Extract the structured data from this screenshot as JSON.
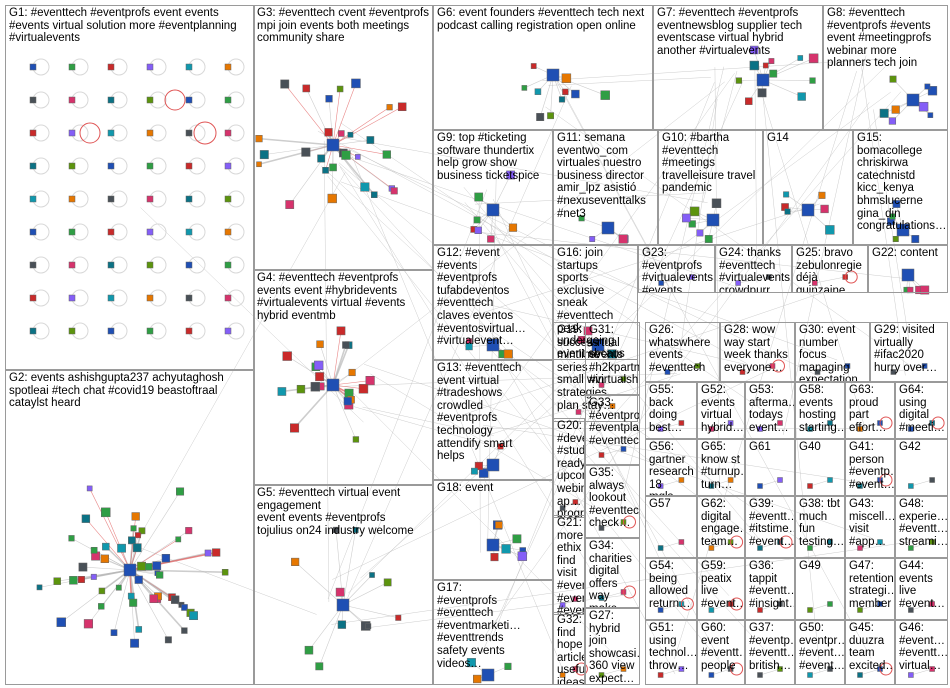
{
  "groups": [
    {
      "id": "G1",
      "label": "G1: #eventtech #eventprofs event events\n#events virtual solution more #eventplanning\n#virtualevents"
    },
    {
      "id": "G2",
      "label": "G2: events ashishgupta237 achyutaghosh\nspotleai #tech chat #covid19 beastoftraal\ncataylst heard"
    },
    {
      "id": "G3",
      "label": "G3: #eventtech cvent #eventprofs\nmpi join events both meetings\ncommunity share"
    },
    {
      "id": "G4",
      "label": "G4: #eventtech #eventprofs\nevents event #hybridevents\n#virtualevents virtual #events\nhybrid eventmb"
    },
    {
      "id": "G5",
      "label": "G5: #eventtech virtual event engagement\nevent events #eventprofs\ntojulius on24 industry welcome"
    },
    {
      "id": "G6",
      "label": "G6: event founders #eventtech tech next\npodcast calling registration open online"
    },
    {
      "id": "G7",
      "label": "G7: #eventtech #eventprofs\neventnewsblog supplier tech\neventscase virtual hybrid\nanother #virtualevents"
    },
    {
      "id": "G8",
      "label": "G8: #eventtech\n#eventprofs #events\nevent #meetingprofs\nwebinar more\nplanners tech join"
    },
    {
      "id": "G9",
      "label": "G9: top #ticketing\nsoftware thundertix\nhelp grow show\nbusiness ticketspice"
    },
    {
      "id": "G11",
      "label": "G11: semana\neventwo_com\nvirtuales nuestro\nbusiness director\namir_lpz asistió\n#nexuseventtalks\n#net3"
    },
    {
      "id": "G10",
      "label": "G10: #bartha\n#eventtech\n#meetings\ntravelleisure travel\npandemic"
    },
    {
      "id": "G14",
      "label": "G14"
    },
    {
      "id": "G15",
      "label": "G15:\nbomacollege\nchriskirwa\ncatechnistd\nkicc_kenya\nbhmslucerne\ngina_din\ncongratulations…"
    },
    {
      "id": "G12",
      "label": "G12: #event\n#events\n#eventprofs\ntufabdeventos\n#eventtech\nclaves eventos\n#eventosvirtual…\n#virtualevent…"
    },
    {
      "id": "G16",
      "label": "G16: join startups\nsports exclusive\nsneak #eventtech\npeak undergoing\nevent sbcaus"
    },
    {
      "id": "G23",
      "label": "G23:\n#eventprofs\n#virtualevents\n#events\n#eventtech…"
    },
    {
      "id": "G24",
      "label": "G24: thanks\n#eventtech\n#virtualevents\ncrowdpurr\nfinalexamtriv…"
    },
    {
      "id": "G25",
      "label": "G25: bravo\nzebulonregie\ndéjà\nquinzaine\nd'acteurs…"
    },
    {
      "id": "G22",
      "label": "G22: content"
    },
    {
      "id": "G19",
      "label": "G19:\nsuccess\nmintlime\nseries\nsmall win\nstrategies\nplan stay…"
    },
    {
      "id": "G31",
      "label": "G31:\nvirtual\nevents\n#h2kpartn…\n#virtualsh…"
    },
    {
      "id": "G26",
      "label": "G26:\nwhatswhere\nevents\n#eventtech"
    },
    {
      "id": "G28",
      "label": "G28: wow\nway start\nweek thanks\neveryone…"
    },
    {
      "id": "G30",
      "label": "G30: event\nnumber focus\nmanaging\nexpectation…"
    },
    {
      "id": "G29",
      "label": "G29: visited\nvirtually\n#ifac2020\nhurry over…"
    },
    {
      "id": "G13",
      "label": "G13: #eventtech\nevent virtual\n#tradeshows\ncrowdled\n#eventprofs\ntechnology\nattendify smart\nhelps"
    },
    {
      "id": "G20",
      "label": "G20:\n#develop…\n#students\nready\nupcoming\nwebinar ap…\nprogram…"
    },
    {
      "id": "G33",
      "label": "G33:\n#eventpro…\n#eventpla…\n#eventtech"
    },
    {
      "id": "G35",
      "label": "G35:\nalways\nlookout\n#eventtech\ncheck…"
    },
    {
      "id": "G55",
      "label": "G55:\nback\ndoing\nbest…"
    },
    {
      "id": "G52",
      "label": "G52:\nevents\nvirtual\nhybrid…"
    },
    {
      "id": "G53",
      "label": "G53:\naftermа…\ntodays\nevent…"
    },
    {
      "id": "G58",
      "label": "G58:\nevents\nhosting\nstarting…"
    },
    {
      "id": "G63",
      "label": "G63:\nproud\npart\neffort…"
    },
    {
      "id": "G64",
      "label": "G64:\nusing\ndigital\n#meeti…"
    },
    {
      "id": "G56",
      "label": "G56:\ngartner\nresearch\n18 mqls…"
    },
    {
      "id": "G65",
      "label": "G65:\nknow st\n#turnup…\nturn…"
    },
    {
      "id": "G61",
      "label": "G61"
    },
    {
      "id": "G40",
      "label": "G40"
    },
    {
      "id": "G41",
      "label": "G41:\nperson\n#eventp…\n#event…"
    },
    {
      "id": "G42",
      "label": "G42"
    },
    {
      "id": "G18",
      "label": "G18: event"
    },
    {
      "id": "G21",
      "label": "G21: more\nethix find\nvisit\n#eventpro…\n#eventpro…\n#eventtech\nproductio…"
    },
    {
      "id": "G57",
      "label": "G57"
    },
    {
      "id": "G62",
      "label": "G62:\ndigital\nengage…\nteam…"
    },
    {
      "id": "G39",
      "label": "G39:\n#eventt…\n#itstime…\n#event…"
    },
    {
      "id": "G38",
      "label": "G38: tbt\nmuch\nfun\ntesting…"
    },
    {
      "id": "G43",
      "label": "G43:\nmiscell…\nvisit\n#app…"
    },
    {
      "id": "G48",
      "label": "G48:\nexperie…\n#eventt…\nstreami…"
    },
    {
      "id": "G34",
      "label": "G34:\ncharities\ndigital\noffers way\nmake…"
    },
    {
      "id": "G54",
      "label": "G54:\nbeing\nallowed\nreturn…"
    },
    {
      "id": "G59",
      "label": "G59:\npeatix\nlive\n#event…"
    },
    {
      "id": "G36",
      "label": "G36:\ntappit\n#eventt…\n#insight…"
    },
    {
      "id": "G49",
      "label": "G49"
    },
    {
      "id": "G47",
      "label": "G47:\nretention\nstrategi…\nmember"
    },
    {
      "id": "G44",
      "label": "G44:\nevents\nlive\n#event…"
    },
    {
      "id": "G17",
      "label": "G17:\n#eventprofs\n#eventtech\n#eventmarketi…\n#eventtrends\nsafety events\nvideos…"
    },
    {
      "id": "G32",
      "label": "G32: find\nhope\narticle\nuseful\nideas…"
    },
    {
      "id": "G27",
      "label": "G27:\nhybrid join\nshowcasi…\n360 view\nexpect…"
    },
    {
      "id": "G51",
      "label": "G51:\nusing\ntechnol…\nthrow…"
    },
    {
      "id": "G60",
      "label": "G60:\nevent\n#eventt…\npeople"
    },
    {
      "id": "G37",
      "label": "G37:\n#eventp…\n#eventt…\nbritish…"
    },
    {
      "id": "G50",
      "label": "G50:\neventpr…\n#event…\n#event…"
    },
    {
      "id": "G45",
      "label": "G45:\nduuzra\nteam\nexcited…"
    },
    {
      "id": "G46",
      "label": "G46:\n#event…\n#eventt…\nvirtual…"
    }
  ],
  "colors": {
    "border": "#9a9a9a",
    "edge": "#b8b8b8",
    "edge_strong": "#e05555",
    "node_palette": [
      "#1f4fb4",
      "#2f9e44",
      "#c92a2a",
      "#845ef7",
      "#1098ad",
      "#e67700",
      "#495057",
      "#d6336c",
      "#0b7285",
      "#5c940d"
    ]
  }
}
